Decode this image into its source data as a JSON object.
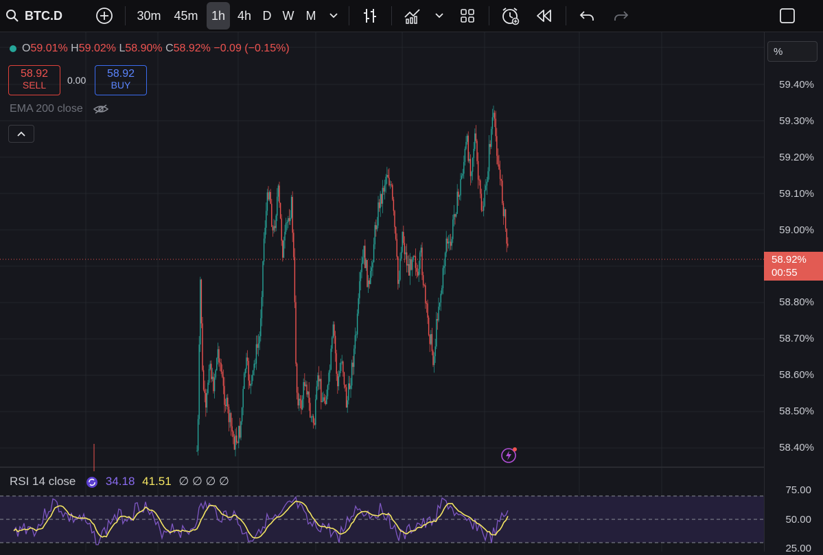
{
  "toolbar": {
    "symbol": "BTC.D",
    "timeframes": [
      "30m",
      "45m",
      "1h",
      "4h",
      "D",
      "W",
      "M"
    ],
    "active_timeframe": "1h",
    "icons": [
      "search-icon",
      "add-compare-icon",
      "chevron-down-icon",
      "bar-style-icon",
      "indicators-icon",
      "layouts-icon",
      "alert-icon",
      "replay-icon",
      "undo-icon",
      "redo-icon",
      "fullscreen-icon"
    ]
  },
  "legend": {
    "o_label": "O",
    "o_value": "59.01%",
    "h_label": "H",
    "h_value": "59.02%",
    "l_label": "L",
    "l_value": "58.90%",
    "c_label": "C",
    "c_value": "58.92%",
    "change": "−0.09 (−0.15%)",
    "sell_price": "58.92",
    "sell_label": "SELL",
    "spread": "0.00",
    "buy_price": "58.92",
    "buy_label": "BUY",
    "ema_label": "EMA 200 close"
  },
  "price_axis": {
    "unit_button": "%",
    "labels": [
      "59.40%",
      "59.30%",
      "59.20%",
      "59.10%",
      "59.00%",
      "58.80%",
      "58.70%",
      "58.60%",
      "58.50%",
      "58.40%"
    ],
    "current_price": "58.92%",
    "countdown": "00:55"
  },
  "rsi": {
    "label": "RSI 14 close",
    "value": "34.18",
    "ma_value": "41.51",
    "extra": "∅ ∅ ∅ ∅",
    "axis_labels": [
      "75.00",
      "50.00",
      "25.00"
    ]
  },
  "colors": {
    "up": "#26a69a",
    "down": "#ef5350",
    "rsi_line": "#7e57c2",
    "rsi_ma": "#f5e663",
    "price_tag": "#e25b53"
  }
}
